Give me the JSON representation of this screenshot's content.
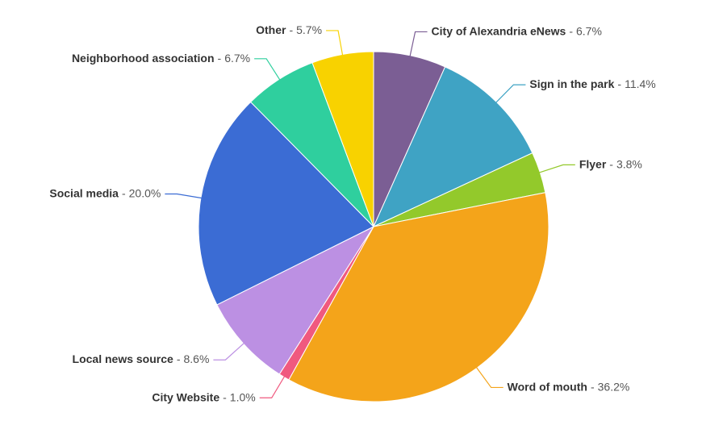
{
  "chart_data": {
    "type": "pie",
    "categories": [
      "City of Alexandria eNews",
      "Sign in the park",
      "Flyer",
      "Word of mouth",
      "City Website",
      "Local news source",
      "Social media",
      "Neighborhood association",
      "Other"
    ],
    "values": [
      6.7,
      11.4,
      3.8,
      36.2,
      1.0,
      8.6,
      20.0,
      6.7,
      5.7
    ],
    "value_labels": [
      "6.7%",
      "11.4%",
      "3.8%",
      "36.2%",
      "1.0%",
      "8.6%",
      "20.0%",
      "6.7%",
      "5.7%"
    ],
    "separator": "-",
    "colors": [
      "#7b5e94",
      "#3fa3c4",
      "#93c92b",
      "#f4a41a",
      "#f0597f",
      "#bc90e3",
      "#3b6cd4",
      "#2fcf9e",
      "#f8d200"
    ]
  }
}
